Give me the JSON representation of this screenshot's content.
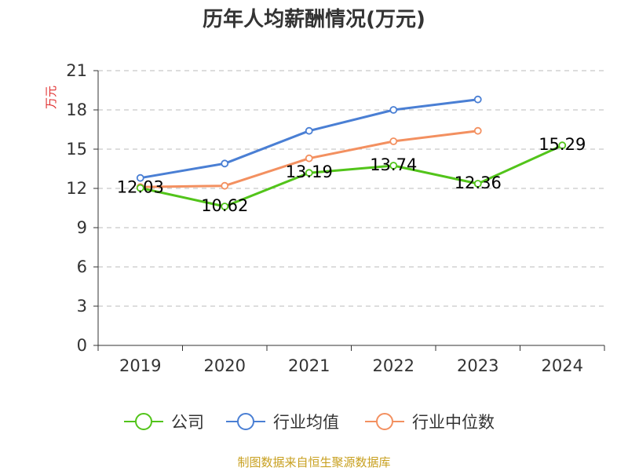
{
  "chart_data": {
    "type": "line",
    "title": "历年人均薪酬情况(万元)",
    "ylabel": "万元",
    "xlabel": "",
    "categories": [
      "2019",
      "2020",
      "2021",
      "2022",
      "2023",
      "2024"
    ],
    "ylim": [
      0,
      21
    ],
    "yticks": [
      0,
      3,
      6,
      9,
      12,
      15,
      18,
      21
    ],
    "grid": true,
    "legend_position": "bottom",
    "series": [
      {
        "name": "公司",
        "color": "#52c41a",
        "values": [
          12.03,
          10.62,
          13.19,
          13.74,
          12.36,
          15.29
        ],
        "labels": [
          "12.03",
          "10.62",
          "13.19",
          "13.74",
          "12.36",
          "15.29"
        ]
      },
      {
        "name": "行业均值",
        "color": "#4a7fd4",
        "values": [
          12.8,
          13.9,
          16.4,
          18.0,
          18.8,
          null
        ]
      },
      {
        "name": "行业中位数",
        "color": "#f39060",
        "values": [
          12.1,
          12.2,
          14.3,
          15.6,
          16.4,
          null
        ]
      }
    ],
    "source": "制图数据来自恒生聚源数据库"
  }
}
